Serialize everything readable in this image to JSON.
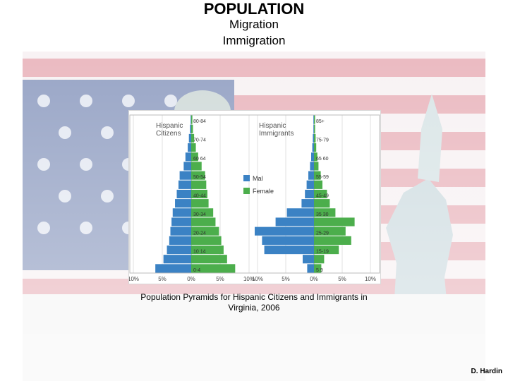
{
  "slide": {
    "title": "POPULATION",
    "subtitle1": "Migration",
    "subtitle2": "Immigration",
    "caption": "Population Pyramids for Hispanic Citizens and Immigrants in Virginia, 2006",
    "credit": "D. Hardin"
  },
  "colors": {
    "male": "#3b82c4",
    "female": "#4cae4c",
    "panel_bg": "#ffffff"
  },
  "chart_data": [
    {
      "type": "bar",
      "title": "Hispanic Citizens",
      "orientation": "horizontal-pyramid",
      "age_labels": [
        "80-84",
        "",
        "70-74",
        "",
        "60 64",
        "",
        "50-54",
        "",
        "40-44",
        "",
        "30-34",
        "",
        "20-24",
        "",
        "10 14",
        "",
        "0-4"
      ],
      "series": [
        {
          "name": "Mal",
          "values": [
            0.1,
            0.2,
            0.4,
            0.6,
            1.0,
            1.3,
            2.0,
            2.2,
            2.5,
            2.8,
            3.2,
            3.4,
            3.6,
            3.8,
            4.2,
            4.8,
            6.2
          ]
        },
        {
          "name": "Female",
          "values": [
            0.2,
            0.3,
            0.5,
            0.8,
            1.2,
            1.8,
            2.4,
            2.6,
            2.8,
            3.0,
            3.8,
            4.2,
            4.8,
            5.2,
            5.6,
            6.2,
            7.6
          ]
        }
      ],
      "x_ticks": [
        "10%",
        "5%",
        "0%",
        "5%",
        "10%"
      ],
      "xlim": [
        -10,
        10
      ]
    },
    {
      "type": "bar",
      "title": "Hispanic Immigrants",
      "orientation": "horizontal-pyramid",
      "age_labels": [
        "85+",
        "",
        "75-79",
        "",
        "65 60",
        "",
        "55-59",
        "",
        "45-49",
        "",
        "35 30",
        "",
        "25-29",
        "",
        "15-19",
        "",
        "5 9"
      ],
      "series": [
        {
          "name": "Mal",
          "values": [
            0.1,
            0.1,
            0.2,
            0.3,
            0.5,
            0.7,
            1.0,
            1.3,
            1.6,
            2.2,
            4.8,
            6.8,
            10.5,
            9.2,
            8.8,
            2.0,
            1.2
          ]
        },
        {
          "name": "Female",
          "values": [
            0.2,
            0.2,
            0.3,
            0.4,
            0.6,
            0.8,
            1.2,
            1.5,
            2.3,
            2.8,
            3.8,
            7.2,
            5.6,
            6.6,
            4.4,
            1.8,
            1.3
          ]
        }
      ],
      "x_ticks": [
        "10%",
        "5%",
        "0%",
        "5%",
        "10%"
      ],
      "xlim": [
        -10,
        10
      ]
    }
  ],
  "legend": {
    "male_label": "Mal",
    "female_label": "Female"
  }
}
